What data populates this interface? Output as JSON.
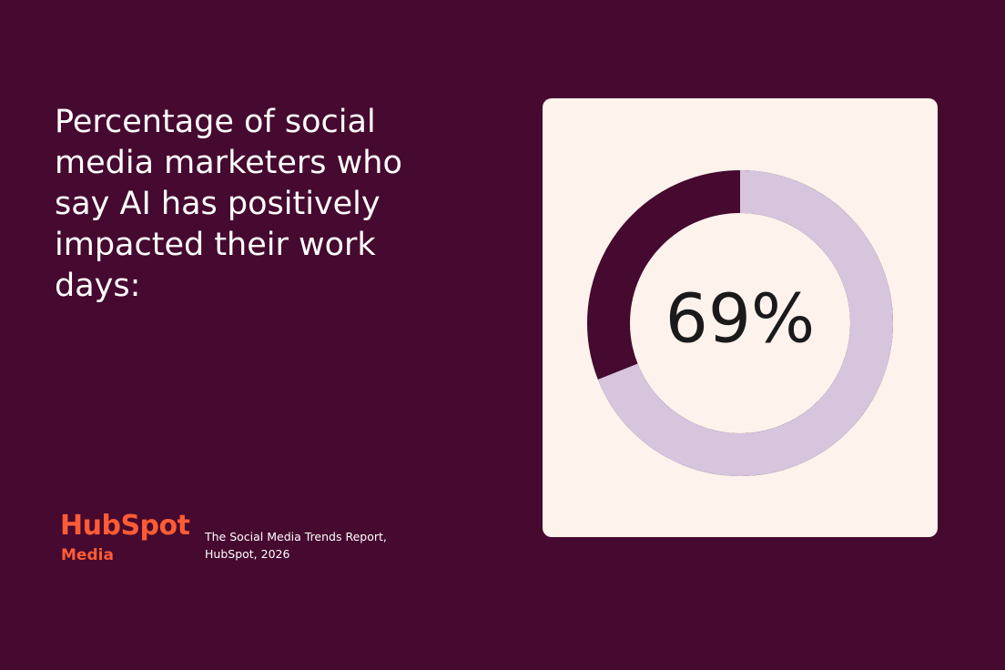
{
  "chart_data": {
    "type": "donut",
    "title": "Percentage of social media marketers who say AI has positively impacted their work days:",
    "values": [
      69
    ],
    "value_labels": [
      "69%"
    ],
    "color": "#d6c5dc",
    "track_color": "#46092f"
  },
  "logo": {
    "name": "HubSpot",
    "sub": "Media"
  },
  "source": "The Social Media Trends Report, HubSpot, 2026"
}
